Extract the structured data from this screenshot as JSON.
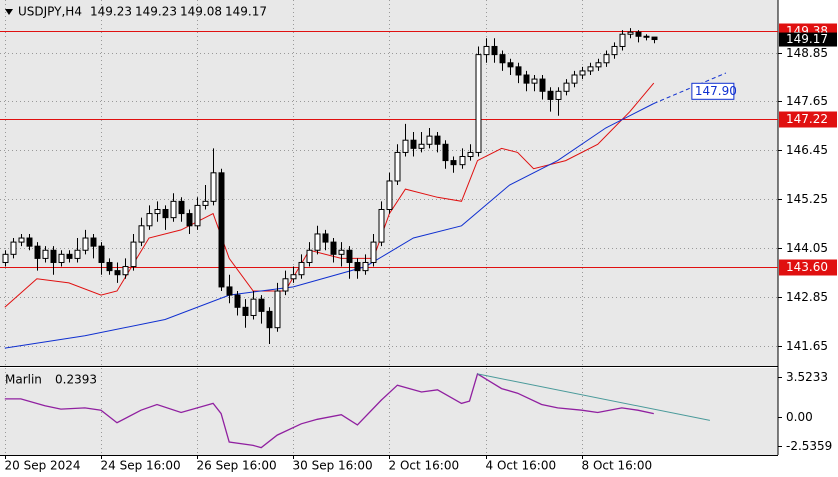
{
  "chart_data": {
    "type": "candlestick",
    "symbol": "USDJPY,H4",
    "up_color": "#ffffff",
    "down_color": "#000000",
    "grid": true,
    "candles": [
      [
        143.7,
        144.0,
        143.6,
        143.9
      ],
      [
        143.9,
        144.3,
        143.8,
        144.2
      ],
      [
        144.2,
        144.4,
        144.1,
        144.3
      ],
      [
        144.3,
        144.4,
        144.0,
        144.1
      ],
      [
        144.1,
        144.2,
        143.5,
        143.8
      ],
      [
        143.8,
        144.1,
        143.7,
        144.0
      ],
      [
        144.0,
        144.1,
        143.4,
        143.7
      ],
      [
        143.7,
        144.0,
        143.6,
        143.9
      ],
      [
        143.9,
        144.0,
        143.7,
        143.8
      ],
      [
        143.8,
        144.3,
        143.7,
        144.0
      ],
      [
        144.0,
        144.5,
        143.9,
        144.3
      ],
      [
        144.3,
        144.4,
        143.8,
        144.1
      ],
      [
        144.1,
        144.2,
        143.4,
        143.7
      ],
      [
        143.7,
        143.8,
        143.4,
        143.5
      ],
      [
        143.5,
        143.7,
        143.2,
        143.4
      ],
      [
        143.4,
        143.8,
        143.3,
        143.6
      ],
      [
        143.6,
        144.4,
        143.5,
        144.2
      ],
      [
        144.2,
        144.8,
        144.1,
        144.6
      ],
      [
        144.6,
        145.1,
        144.5,
        144.9
      ],
      [
        144.9,
        145.2,
        144.7,
        145.0
      ],
      [
        145.0,
        145.1,
        144.5,
        144.8
      ],
      [
        144.8,
        145.4,
        144.7,
        145.2
      ],
      [
        145.2,
        145.3,
        144.7,
        144.9
      ],
      [
        144.9,
        145.0,
        144.4,
        144.6
      ],
      [
        144.6,
        145.3,
        144.5,
        145.1
      ],
      [
        145.1,
        145.6,
        145.0,
        145.2
      ],
      [
        145.2,
        146.5,
        145.1,
        145.9
      ],
      [
        145.9,
        146.0,
        143.0,
        143.1
      ],
      [
        143.1,
        143.4,
        142.7,
        142.9
      ],
      [
        142.9,
        143.0,
        142.4,
        142.6
      ],
      [
        142.6,
        142.8,
        142.1,
        142.4
      ],
      [
        142.4,
        143.0,
        142.3,
        142.8
      ],
      [
        142.8,
        142.9,
        142.2,
        142.5
      ],
      [
        142.5,
        142.6,
        141.7,
        142.1
      ],
      [
        142.1,
        143.2,
        142.0,
        143.0
      ],
      [
        143.0,
        143.5,
        142.9,
        143.3
      ],
      [
        143.3,
        143.6,
        143.2,
        143.4
      ],
      [
        143.4,
        143.9,
        143.3,
        143.7
      ],
      [
        143.7,
        144.2,
        143.6,
        144.0
      ],
      [
        144.0,
        144.6,
        143.9,
        144.4
      ],
      [
        144.4,
        144.5,
        144.0,
        144.2
      ],
      [
        144.2,
        144.3,
        143.7,
        143.9
      ],
      [
        143.9,
        144.2,
        143.6,
        144.0
      ],
      [
        144.0,
        144.1,
        143.3,
        143.7
      ],
      [
        143.7,
        143.8,
        143.3,
        143.5
      ],
      [
        143.5,
        143.9,
        143.4,
        143.7
      ],
      [
        143.7,
        144.4,
        143.6,
        144.2
      ],
      [
        144.2,
        145.2,
        144.1,
        145.0
      ],
      [
        145.0,
        145.9,
        144.9,
        145.7
      ],
      [
        145.7,
        146.6,
        145.6,
        146.4
      ],
      [
        146.4,
        147.1,
        146.3,
        146.7
      ],
      [
        146.7,
        146.9,
        146.3,
        146.5
      ],
      [
        146.5,
        146.9,
        146.4,
        146.6
      ],
      [
        146.6,
        147.0,
        146.5,
        146.8
      ],
      [
        146.8,
        146.9,
        146.4,
        146.6
      ],
      [
        146.6,
        146.7,
        146.0,
        146.2
      ],
      [
        146.2,
        146.3,
        145.9,
        146.1
      ],
      [
        146.1,
        146.5,
        146.0,
        146.3
      ],
      [
        146.3,
        146.6,
        146.2,
        146.4
      ],
      [
        146.4,
        149.0,
        146.3,
        148.8
      ],
      [
        148.8,
        149.2,
        148.6,
        149.0
      ],
      [
        149.0,
        149.2,
        148.6,
        148.8
      ],
      [
        148.8,
        148.9,
        148.4,
        148.6
      ],
      [
        148.6,
        148.7,
        148.3,
        148.5
      ],
      [
        148.5,
        148.6,
        148.1,
        148.3
      ],
      [
        148.3,
        148.4,
        147.9,
        148.1
      ],
      [
        148.1,
        148.3,
        147.9,
        148.2
      ],
      [
        148.2,
        148.3,
        147.7,
        147.9
      ],
      [
        147.9,
        148.0,
        147.4,
        147.7
      ],
      [
        147.7,
        148.0,
        147.3,
        147.9
      ],
      [
        147.9,
        148.2,
        147.8,
        148.1
      ],
      [
        148.1,
        148.4,
        148.0,
        148.3
      ],
      [
        148.3,
        148.5,
        148.2,
        148.4
      ],
      [
        148.4,
        148.6,
        148.3,
        148.5
      ],
      [
        148.5,
        148.7,
        148.4,
        148.6
      ],
      [
        148.6,
        148.9,
        148.5,
        148.8
      ],
      [
        148.8,
        149.1,
        148.7,
        149.0
      ],
      [
        149.0,
        149.4,
        148.9,
        149.3
      ],
      [
        149.3,
        149.45,
        149.2,
        149.35
      ],
      [
        149.35,
        149.4,
        149.1,
        149.25
      ],
      [
        149.25,
        149.3,
        149.15,
        149.23
      ],
      [
        149.23,
        149.23,
        149.08,
        149.17
      ]
    ],
    "xlim": [
      -0.6,
      96.5
    ],
    "xticks": [
      {
        "value": 0,
        "label": "20 Sep 2024"
      },
      {
        "value": 12,
        "label": "24 Sep 16:00"
      },
      {
        "value": 24,
        "label": "26 Sep 16:00"
      },
      {
        "value": 36,
        "label": "30 Sep 16:00"
      },
      {
        "value": 48,
        "label": "2 Oct 16:00"
      },
      {
        "value": 60,
        "label": "4 Oct 16:00"
      },
      {
        "value": 72,
        "label": "8 Oct 16:00"
      }
    ],
    "ylim": [
      141.16,
      150.14
    ],
    "yticks": [
      148.85,
      147.65,
      146.45,
      145.25,
      144.05,
      142.85,
      141.65
    ],
    "ma": [
      {
        "color": "#e01010",
        "x": [
          0,
          4,
          8,
          12,
          14,
          18,
          22,
          26,
          28,
          31,
          35,
          38,
          42,
          46,
          48,
          50,
          54,
          57,
          59,
          62,
          64,
          66,
          70,
          74,
          78,
          81
        ],
        "values": [
          142.6,
          143.3,
          143.2,
          142.9,
          143.0,
          144.3,
          144.5,
          144.9,
          143.8,
          143.0,
          143.0,
          144.0,
          143.8,
          143.8,
          144.9,
          145.5,
          145.3,
          145.2,
          146.2,
          146.5,
          146.4,
          146.0,
          146.2,
          146.6,
          147.4,
          148.1
        ]
      },
      {
        "color": "#1030d0",
        "x": [
          0,
          10,
          20,
          28,
          36,
          45,
          51,
          57,
          63,
          69,
          75,
          81
        ],
        "values": [
          141.6,
          141.9,
          142.3,
          142.9,
          143.1,
          143.6,
          144.3,
          144.6,
          145.6,
          146.2,
          147.0,
          147.6
        ],
        "projection": {
          "x": [
            81,
            90
          ],
          "values": [
            147.6,
            148.35
          ]
        }
      }
    ],
    "levels": [
      {
        "value": 149.38,
        "color": "#e01010"
      },
      {
        "value": 147.22,
        "color": "#e01010"
      },
      {
        "value": 143.6,
        "label": "143.60",
        "color": "#e01010"
      }
    ],
    "annotation": {
      "value": 147.9,
      "label": "147.90",
      "x": 86,
      "color": "#1030d0"
    },
    "indicator": {
      "name": "Marlin",
      "value": 0.2393,
      "color": "#9020a0",
      "ylim": [
        -3.35,
        4.32
      ],
      "yticks": [
        3.5233,
        {
          "value": 0,
          "label": "0.00"
        },
        -2.5359
      ],
      "x": [
        0,
        2,
        5,
        7,
        10,
        12,
        14,
        17,
        19,
        22,
        26,
        27,
        28,
        31,
        32,
        34,
        37,
        39,
        42,
        44,
        47,
        49,
        52,
        54,
        57,
        58,
        59,
        62,
        64,
        67,
        69,
        72,
        74,
        77,
        79,
        81
      ],
      "values": [
        1.6,
        1.6,
        1.0,
        0.7,
        0.8,
        0.6,
        -0.5,
        0.6,
        1.1,
        0.4,
        1.2,
        0.3,
        -2.2,
        -2.5,
        -2.7,
        -1.6,
        -0.6,
        -0.2,
        0.2,
        -0.7,
        1.5,
        2.8,
        2.2,
        2.4,
        1.2,
        1.4,
        3.8,
        2.5,
        2.1,
        1.1,
        0.8,
        0.6,
        0.4,
        0.8,
        0.6,
        0.3
      ],
      "trendline": {
        "color": "#4a9a9a",
        "x": [
          59,
          88
        ],
        "values": [
          3.8,
          -0.3
        ]
      }
    }
  }
}
